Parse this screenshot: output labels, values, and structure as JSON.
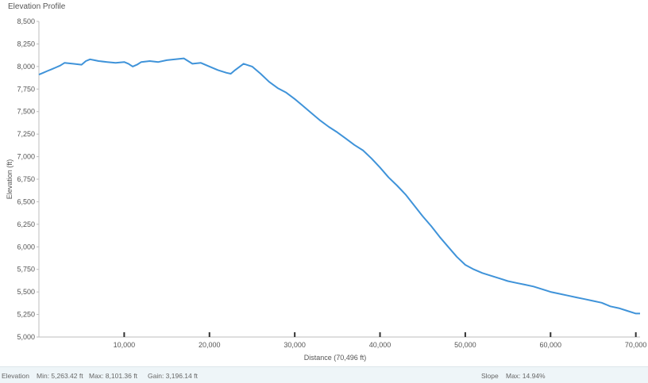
{
  "window": {
    "title": "Elevation Profile"
  },
  "chart_data": {
    "type": "line",
    "title": "Elevation Profile",
    "xlabel": "Distance (70,496 ft)",
    "ylabel": "Elevation (ft)",
    "xlim": [
      0,
      70496
    ],
    "ylim": [
      5000,
      8500
    ],
    "y_ticks": [
      5000,
      5250,
      5500,
      5750,
      6000,
      6250,
      6500,
      6750,
      7000,
      7250,
      7500,
      7750,
      8000,
      8250,
      8500
    ],
    "y_tick_labels": [
      "5,000",
      "5,250",
      "5,500",
      "5,750",
      "6,000",
      "6,250",
      "6,500",
      "6,750",
      "7,000",
      "7,250",
      "7,500",
      "7,750",
      "8,000",
      "8,250",
      "8,500"
    ],
    "x_ticks": [
      10000,
      20000,
      30000,
      40000,
      50000,
      60000,
      70000
    ],
    "x_tick_labels": [
      "10,000",
      "20,000",
      "30,000",
      "40,000",
      "50,000",
      "60,000",
      "70,000"
    ],
    "grid": false,
    "legend": "none",
    "line_color": "#3f93d9",
    "series": [
      {
        "x": [
          0,
          500,
          1000,
          1500,
          2000,
          2500,
          3000,
          4000,
          5000,
          5500,
          6000,
          6500,
          7000,
          8000,
          9000,
          10000,
          10500,
          11000,
          11500,
          12000,
          13000,
          14000,
          15000,
          16000,
          17000,
          17500,
          18000,
          19000,
          20000,
          21000,
          22000,
          22500,
          23000,
          24000,
          25000,
          26000,
          27000,
          28000,
          29000,
          30000,
          31000,
          32000,
          33000,
          34000,
          35000,
          36000,
          37000,
          38000,
          39000,
          40000,
          41000,
          42000,
          43000,
          44000,
          45000,
          46000,
          47000,
          48000,
          49000,
          50000,
          51000,
          52000,
          53000,
          54000,
          55000,
          56000,
          57000,
          58000,
          59000,
          60000,
          61000,
          62000,
          63000,
          64000,
          65000,
          66000,
          67000,
          68000,
          69000,
          70000,
          70496
        ],
        "y": [
          7910,
          7930,
          7950,
          7970,
          7990,
          8010,
          8040,
          8030,
          8020,
          8060,
          8080,
          8070,
          8060,
          8050,
          8040,
          8050,
          8030,
          8000,
          8020,
          8050,
          8060,
          8050,
          8070,
          8080,
          8090,
          8060,
          8030,
          8040,
          8000,
          7960,
          7930,
          7920,
          7960,
          8030,
          8000,
          7920,
          7830,
          7760,
          7710,
          7640,
          7560,
          7480,
          7400,
          7330,
          7270,
          7200,
          7130,
          7070,
          6980,
          6880,
          6770,
          6680,
          6580,
          6460,
          6340,
          6230,
          6110,
          6000,
          5890,
          5800,
          5750,
          5710,
          5680,
          5650,
          5620,
          5600,
          5580,
          5560,
          5530,
          5500,
          5480,
          5460,
          5440,
          5420,
          5400,
          5380,
          5340,
          5320,
          5290,
          5260,
          5260
        ]
      }
    ]
  },
  "statusbar": {
    "elevation_label": "Elevation",
    "min_text": "Min: 5,263.42 ft",
    "max_text": "Max: 8,101.36 ft",
    "gain_text": "Gain: 3,196.14 ft",
    "slope_label": "Slope",
    "slope_max_text": "Max: 14.94%"
  }
}
